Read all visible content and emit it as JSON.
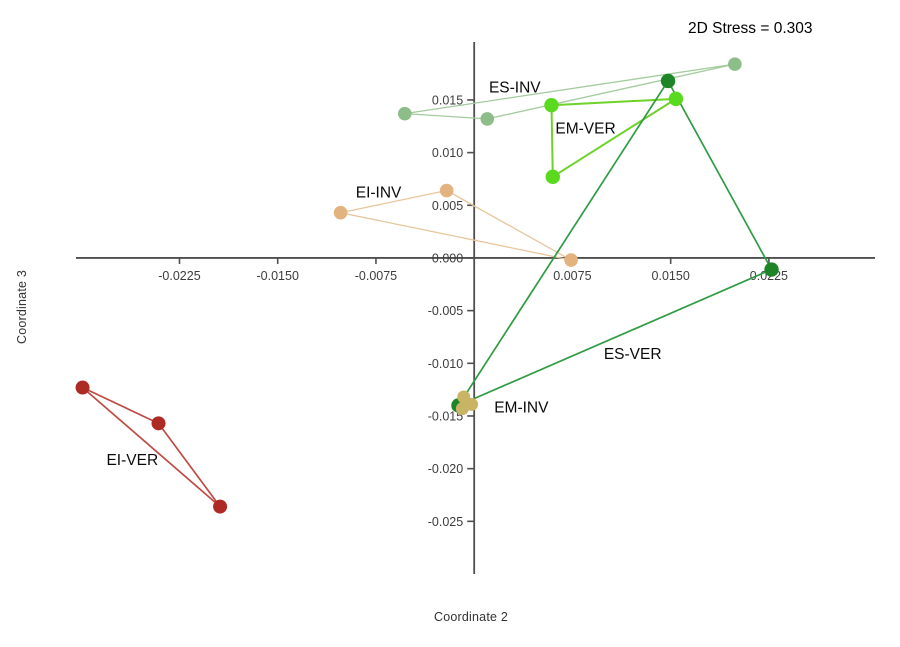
{
  "page": {
    "background": "#ffffff"
  },
  "chart_data": {
    "type": "scatter",
    "title": "",
    "stress_label": "2D Stress = 0.303",
    "xlabel": "Coordinate 2",
    "ylabel": "Coordinate 3",
    "xlim": [
      -0.0304,
      0.0306
    ],
    "ylim": [
      -0.03,
      0.0205
    ],
    "grid": false,
    "legend": "none",
    "axis_color": "#4f4f4f",
    "tick_label_color": "#3d3d3d",
    "x_ticks": [
      {
        "value": -0.0225,
        "label": "-0.0225"
      },
      {
        "value": -0.015,
        "label": "-0.0150"
      },
      {
        "value": -0.0075,
        "label": "-0.0075"
      },
      {
        "value": 0.0075,
        "label": "0.0075"
      },
      {
        "value": 0.015,
        "label": "0.0150"
      },
      {
        "value": 0.0225,
        "label": "0.0225"
      }
    ],
    "y_ticks": [
      {
        "value": 0.015,
        "label": "0.015"
      },
      {
        "value": 0.01,
        "label": "0.010"
      },
      {
        "value": 0.005,
        "label": "0.005"
      },
      {
        "value": 0.0,
        "label": "0.000"
      },
      {
        "value": -0.005,
        "label": "-0.005"
      },
      {
        "value": -0.01,
        "label": "-0.010"
      },
      {
        "value": -0.015,
        "label": "-0.015"
      },
      {
        "value": -0.02,
        "label": "-0.020"
      },
      {
        "value": -0.025,
        "label": "-0.025"
      }
    ],
    "series": [
      {
        "name": "ES-INV",
        "label": "ES-INV",
        "point_color": "#8dbd88",
        "line_color": "#a3cb9d",
        "line_width": 1.3,
        "point_radius": 6.8,
        "points": [
          [
            -0.0053,
            0.0137
          ],
          [
            0.001,
            0.0132
          ],
          [
            0.0199,
            0.0184
          ]
        ],
        "label_pos": [
          0.0031,
          0.0162
        ]
      },
      {
        "name": "EI-INV",
        "label": "EI-INV",
        "point_color": "#e2b27f",
        "line_color": "#e7c69c",
        "line_width": 1.3,
        "point_radius": 6.8,
        "points": [
          [
            -0.0102,
            0.0043
          ],
          [
            -0.0021,
            0.0064
          ],
          [
            0.0074,
            -0.0002
          ]
        ],
        "label_pos": [
          -0.0073,
          0.0062
        ]
      },
      {
        "name": "EM-VER",
        "label": "EM-VER",
        "point_color": "#59da1f",
        "line_color": "#6ed229",
        "line_width": 2,
        "point_radius": 7.2,
        "points": [
          [
            0.0059,
            0.0145
          ],
          [
            0.0154,
            0.0151
          ],
          [
            0.006,
            0.0077
          ]
        ],
        "label_pos": [
          0.0085,
          0.0123
        ]
      },
      {
        "name": "ES-VER",
        "label": "ES-VER",
        "point_color": "#1e8428",
        "line_color": "#2f9c43",
        "line_width": 1.7,
        "point_radius": 7.2,
        "points": [
          [
            0.0148,
            0.0168
          ],
          [
            0.0227,
            -0.0011
          ],
          [
            -0.0012,
            -0.014
          ]
        ],
        "label_pos": [
          0.0121,
          -0.0091
        ]
      },
      {
        "name": "EM-INV",
        "label": "EM-INV",
        "point_color": "#c9b466",
        "line_color": "#c9b466",
        "line_width": 1,
        "point_radius": 6.5,
        "points": [
          [
            -0.0008,
            -0.0132
          ],
          [
            -0.0002,
            -0.0139
          ],
          [
            -0.0009,
            -0.0143
          ]
        ],
        "label_pos": [
          0.0036,
          -0.0142
        ]
      },
      {
        "name": "EI-VER",
        "label": "EI-VER",
        "point_color": "#ad2a25",
        "line_color": "#bf4a43",
        "line_width": 1.7,
        "point_radius": 7,
        "points": [
          [
            -0.0299,
            -0.0123
          ],
          [
            -0.0241,
            -0.0157
          ],
          [
            -0.0194,
            -0.0236
          ]
        ],
        "label_pos": [
          -0.0261,
          -0.0192
        ]
      }
    ]
  }
}
